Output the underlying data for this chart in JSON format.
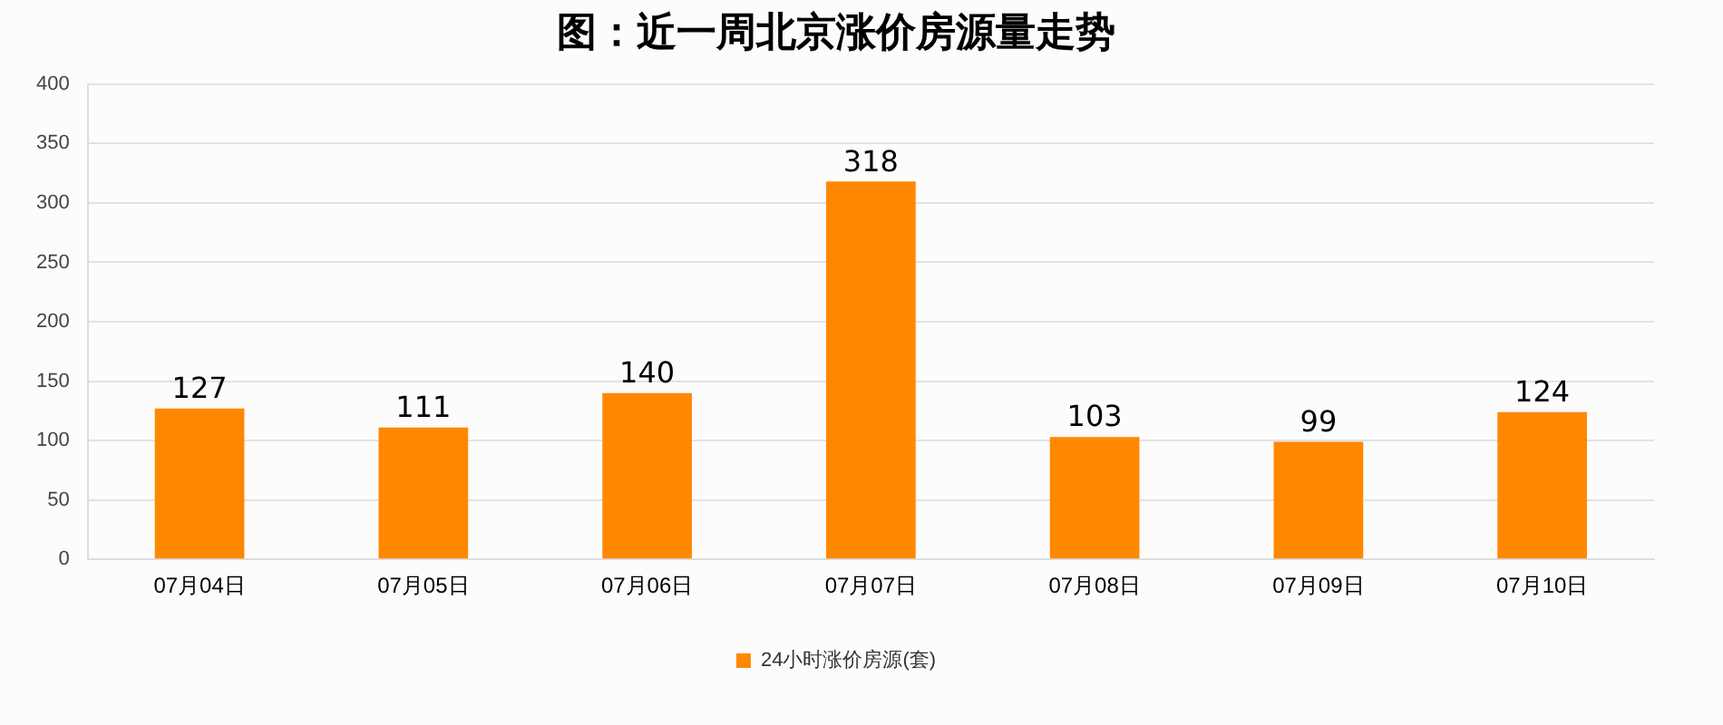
{
  "chart_data": {
    "type": "bar",
    "title": "图：近一周北京涨价房源量走势",
    "categories": [
      "07月04日",
      "07月05日",
      "07月06日",
      "07月07日",
      "07月08日",
      "07月09日",
      "07月10日"
    ],
    "series": [
      {
        "name": "24小时涨价房源(套)",
        "color": "#ff8800",
        "values": [
          127,
          111,
          140,
          318,
          103,
          99,
          124
        ]
      }
    ],
    "ylim": [
      0,
      400
    ],
    "yticks": [
      0,
      50,
      100,
      150,
      200,
      250,
      300,
      350,
      400
    ],
    "grid": "y",
    "legend": "bottom",
    "data_labels": true
  }
}
